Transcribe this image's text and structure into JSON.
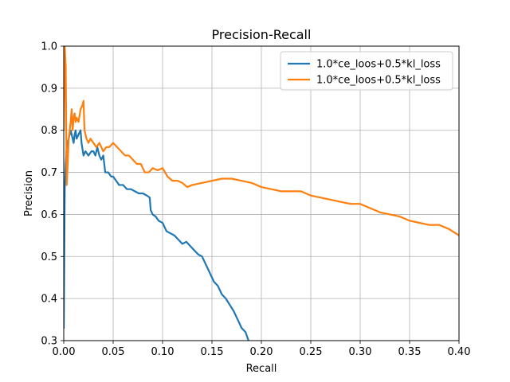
{
  "chart_data": {
    "type": "line",
    "title": "Precision-Recall",
    "xlabel": "Recall",
    "ylabel": "Precision",
    "xlim": [
      0.0,
      0.4
    ],
    "ylim": [
      0.3,
      1.0
    ],
    "xticks": [
      0.0,
      0.05,
      0.1,
      0.15,
      0.2,
      0.25,
      0.3,
      0.35,
      0.4
    ],
    "xtick_labels": [
      "0.00",
      "0.05",
      "0.10",
      "0.15",
      "0.20",
      "0.25",
      "0.30",
      "0.35",
      "0.40"
    ],
    "yticks": [
      0.3,
      0.4,
      0.5,
      0.6,
      0.7,
      0.8,
      0.9,
      1.0
    ],
    "ytick_labels": [
      "0.3",
      "0.4",
      "0.5",
      "0.6",
      "0.7",
      "0.8",
      "0.9",
      "1.0"
    ],
    "grid": true,
    "legend_position": "top-right",
    "series": [
      {
        "name": "1.0*ce_loos+0.5*kl_loss",
        "color": "#1f77b4",
        "x": [
          0.0,
          0.001,
          0.002,
          0.003,
          0.004,
          0.005,
          0.006,
          0.007,
          0.008,
          0.009,
          0.01,
          0.011,
          0.012,
          0.013,
          0.015,
          0.017,
          0.018,
          0.02,
          0.022,
          0.025,
          0.028,
          0.03,
          0.032,
          0.034,
          0.036,
          0.038,
          0.04,
          0.042,
          0.045,
          0.048,
          0.05,
          0.053,
          0.056,
          0.06,
          0.064,
          0.068,
          0.072,
          0.076,
          0.08,
          0.084,
          0.087,
          0.088,
          0.09,
          0.093,
          0.096,
          0.1,
          0.104,
          0.108,
          0.112,
          0.116,
          0.12,
          0.124,
          0.128,
          0.132,
          0.136,
          0.14,
          0.144,
          0.148,
          0.152,
          0.156,
          0.16,
          0.164,
          0.168,
          0.172,
          0.176,
          0.18,
          0.184,
          0.187
        ],
        "values": [
          0.33,
          0.66,
          0.72,
          0.76,
          0.77,
          0.78,
          0.79,
          0.8,
          0.79,
          0.78,
          0.77,
          0.79,
          0.8,
          0.78,
          0.79,
          0.8,
          0.77,
          0.74,
          0.75,
          0.74,
          0.75,
          0.75,
          0.74,
          0.76,
          0.74,
          0.73,
          0.74,
          0.7,
          0.7,
          0.69,
          0.69,
          0.68,
          0.67,
          0.67,
          0.66,
          0.66,
          0.655,
          0.65,
          0.65,
          0.645,
          0.64,
          0.61,
          0.6,
          0.595,
          0.585,
          0.58,
          0.56,
          0.555,
          0.55,
          0.54,
          0.53,
          0.535,
          0.525,
          0.515,
          0.505,
          0.5,
          0.48,
          0.46,
          0.44,
          0.43,
          0.41,
          0.4,
          0.385,
          0.37,
          0.35,
          0.33,
          0.32,
          0.3
        ]
      },
      {
        "name": "1.0*ce_loos+0.5*kl_loss",
        "color": "#ff7f0e",
        "x": [
          0.0,
          0.001,
          0.002,
          0.003,
          0.004,
          0.005,
          0.006,
          0.007,
          0.008,
          0.009,
          0.01,
          0.011,
          0.012,
          0.013,
          0.015,
          0.017,
          0.019,
          0.02,
          0.021,
          0.023,
          0.025,
          0.027,
          0.03,
          0.033,
          0.036,
          0.04,
          0.043,
          0.046,
          0.05,
          0.054,
          0.058,
          0.062,
          0.066,
          0.07,
          0.074,
          0.078,
          0.082,
          0.086,
          0.09,
          0.095,
          0.1,
          0.105,
          0.11,
          0.115,
          0.12,
          0.125,
          0.13,
          0.14,
          0.15,
          0.16,
          0.17,
          0.18,
          0.19,
          0.2,
          0.21,
          0.22,
          0.23,
          0.24,
          0.25,
          0.26,
          0.27,
          0.28,
          0.29,
          0.3,
          0.31,
          0.32,
          0.33,
          0.34,
          0.35,
          0.36,
          0.37,
          0.38,
          0.39,
          0.4
        ],
        "values": [
          0.8,
          1.0,
          0.95,
          0.67,
          0.72,
          0.78,
          0.8,
          0.82,
          0.85,
          0.8,
          0.83,
          0.84,
          0.82,
          0.83,
          0.82,
          0.85,
          0.86,
          0.87,
          0.8,
          0.78,
          0.77,
          0.78,
          0.77,
          0.76,
          0.77,
          0.75,
          0.76,
          0.76,
          0.77,
          0.76,
          0.75,
          0.74,
          0.74,
          0.73,
          0.72,
          0.72,
          0.7,
          0.7,
          0.71,
          0.705,
          0.71,
          0.69,
          0.68,
          0.68,
          0.675,
          0.665,
          0.67,
          0.675,
          0.68,
          0.685,
          0.685,
          0.68,
          0.675,
          0.665,
          0.66,
          0.655,
          0.655,
          0.655,
          0.645,
          0.64,
          0.635,
          0.63,
          0.625,
          0.625,
          0.615,
          0.605,
          0.6,
          0.595,
          0.585,
          0.58,
          0.575,
          0.575,
          0.565,
          0.55
        ]
      }
    ]
  }
}
